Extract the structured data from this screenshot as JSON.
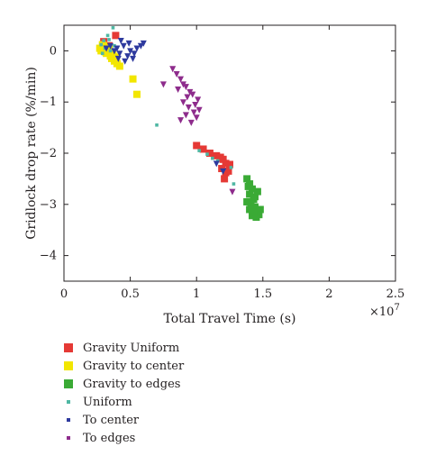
{
  "chart_data": {
    "type": "scatter",
    "xlabel": "Total Travel Time (s)",
    "ylabel": "Gridlock drop rate (%/min)",
    "x_scale_label": "×10",
    "x_scale_exponent": "7",
    "xlim": [
      0,
      2.5
    ],
    "ylim": [
      -4.5,
      0.5
    ],
    "x_ticks": [
      "0",
      "0.5",
      "1",
      "1.5",
      "2",
      "2.5"
    ],
    "y_ticks": [
      "0",
      "−1",
      "−2",
      "−3",
      "−4"
    ],
    "grid": false,
    "legend_position": "below",
    "series": [
      {
        "name": "Gravity Uniform",
        "color": "#e53935",
        "marker": "square",
        "points": [
          [
            0.3,
            0.18
          ],
          [
            0.39,
            0.3
          ],
          [
            0.34,
            0.1
          ],
          [
            1.0,
            -1.85
          ],
          [
            1.05,
            -1.92
          ],
          [
            1.1,
            -2.0
          ],
          [
            1.15,
            -2.05
          ],
          [
            1.18,
            -2.08
          ],
          [
            1.2,
            -2.12
          ],
          [
            1.22,
            -2.2
          ],
          [
            1.25,
            -2.22
          ],
          [
            1.19,
            -2.3
          ],
          [
            1.22,
            -2.38
          ],
          [
            1.21,
            -2.5
          ],
          [
            1.24,
            -2.35
          ]
        ]
      },
      {
        "name": "Gravity to center",
        "color": "#f2e600",
        "marker": "square",
        "points": [
          [
            0.27,
            0.05
          ],
          [
            0.28,
            0.0
          ],
          [
            0.3,
            0.1
          ],
          [
            0.32,
            -0.05
          ],
          [
            0.33,
            0.02
          ],
          [
            0.35,
            -0.1
          ],
          [
            0.36,
            -0.15
          ],
          [
            0.38,
            -0.2
          ],
          [
            0.4,
            -0.25
          ],
          [
            0.42,
            -0.3
          ],
          [
            0.29,
            0.12
          ],
          [
            0.31,
            -0.02
          ],
          [
            0.34,
            0.05
          ],
          [
            0.37,
            -0.08
          ],
          [
            0.39,
            -0.12
          ],
          [
            0.52,
            -0.55
          ],
          [
            0.55,
            -0.85
          ]
        ]
      },
      {
        "name": "Gravity to edges",
        "color": "#3aaa35",
        "marker": "square",
        "points": [
          [
            1.38,
            -2.5
          ],
          [
            1.4,
            -2.6
          ],
          [
            1.42,
            -2.7
          ],
          [
            1.4,
            -2.8
          ],
          [
            1.43,
            -2.9
          ],
          [
            1.38,
            -2.95
          ],
          [
            1.41,
            -3.0
          ],
          [
            1.44,
            -3.05
          ],
          [
            1.4,
            -3.1
          ],
          [
            1.45,
            -3.15
          ],
          [
            1.47,
            -3.2
          ],
          [
            1.42,
            -3.22
          ],
          [
            1.48,
            -3.1
          ],
          [
            1.44,
            -2.85
          ],
          [
            1.46,
            -2.75
          ],
          [
            1.39,
            -2.65
          ],
          [
            1.45,
            -3.25
          ],
          [
            1.43,
            -3.15
          ]
        ]
      },
      {
        "name": "Uniform",
        "color": "#4fb7a3",
        "marker": "dot",
        "points": [
          [
            0.37,
            0.45
          ],
          [
            0.33,
            0.3
          ],
          [
            0.3,
            0.2
          ],
          [
            0.28,
            0.12
          ],
          [
            0.31,
            0.05
          ],
          [
            0.35,
            0.0
          ],
          [
            0.38,
            0.1
          ],
          [
            0.7,
            -1.45
          ],
          [
            1.02,
            -1.95
          ],
          [
            1.08,
            -2.02
          ],
          [
            1.12,
            -2.1
          ],
          [
            1.16,
            -2.15
          ],
          [
            1.26,
            -2.28
          ],
          [
            1.28,
            -2.6
          ],
          [
            0.29,
            -0.05
          ],
          [
            0.34,
            0.22
          ]
        ]
      },
      {
        "name": "To center",
        "color": "#2e3a9e",
        "marker": "triangle-down",
        "points": [
          [
            0.32,
            0.05
          ],
          [
            0.35,
            0.1
          ],
          [
            0.38,
            0.0
          ],
          [
            0.4,
            0.05
          ],
          [
            0.42,
            -0.05
          ],
          [
            0.45,
            0.1
          ],
          [
            0.48,
            -0.1
          ],
          [
            0.5,
            0.0
          ],
          [
            0.52,
            -0.15
          ],
          [
            0.55,
            0.05
          ],
          [
            0.43,
            0.2
          ],
          [
            0.46,
            -0.2
          ],
          [
            0.49,
            0.15
          ],
          [
            0.53,
            -0.05
          ],
          [
            0.58,
            0.1
          ],
          [
            0.6,
            0.15
          ],
          [
            0.41,
            -0.15
          ],
          [
            1.15,
            -2.2
          ],
          [
            1.2,
            -2.35
          ]
        ]
      },
      {
        "name": "To edges",
        "color": "#8e2c8c",
        "marker": "triangle-down",
        "points": [
          [
            0.82,
            -0.35
          ],
          [
            0.85,
            -0.45
          ],
          [
            0.88,
            -0.55
          ],
          [
            0.9,
            -0.65
          ],
          [
            0.92,
            -0.7
          ],
          [
            0.95,
            -0.8
          ],
          [
            0.97,
            -0.85
          ],
          [
            0.9,
            -1.0
          ],
          [
            0.94,
            -1.1
          ],
          [
            0.98,
            -1.2
          ],
          [
            0.92,
            -1.25
          ],
          [
            1.0,
            -1.3
          ],
          [
            0.96,
            -1.4
          ],
          [
            0.88,
            -1.35
          ],
          [
            1.02,
            -1.15
          ],
          [
            0.86,
            -0.75
          ],
          [
            0.93,
            -0.9
          ],
          [
            0.99,
            -1.05
          ],
          [
            1.01,
            -0.95
          ],
          [
            0.75,
            -0.65
          ],
          [
            1.27,
            -2.75
          ]
        ]
      }
    ]
  }
}
